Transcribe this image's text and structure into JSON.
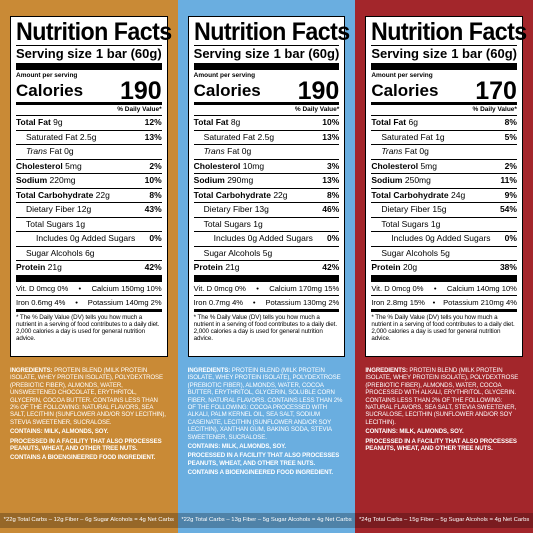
{
  "common": {
    "title": "Nutrition Facts",
    "serving_label": "Serving size",
    "serving_value": "1 bar (60g)",
    "amount_per_serving": "Amount per serving",
    "calories_label": "Calories",
    "dv_header": "% Daily Value*",
    "total_fat": "Total Fat",
    "saturated_fat": "Saturated Fat",
    "trans_fat_italic": "Trans",
    "trans_fat_rest": " Fat 0g",
    "cholesterol": "Cholesterol",
    "sodium": "Sodium",
    "total_carb": "Total Carbohydrate",
    "dietary_fiber": "Dietary Fiber",
    "total_sugars": "Total Sugars 1g",
    "added_sugars": "Includes 0g Added Sugars",
    "added_sugars_dv": "0%",
    "sugar_alcohols": "Sugar Alcohols",
    "protein": "Protein",
    "footnote": "* The % Daily Value (DV) tells you how much a nutrient in a serving of food contributes to a daily diet. 2,000 calories a day is used for general nutrition advice."
  },
  "panels": [
    {
      "color": "#c98a36",
      "calories": "190",
      "fat": "9g",
      "fat_dv": "12%",
      "sat_fat": "2.5g",
      "sat_fat_dv": "13%",
      "chol": "5mg",
      "chol_dv": "2%",
      "sodium": "220mg",
      "sodium_dv": "10%",
      "carb": "22g",
      "carb_dv": "8%",
      "fiber": "12g",
      "fiber_dv": "43%",
      "sugar_alc": "6g",
      "protein": "21g",
      "protein_dv": "42%",
      "vit_d": "Vit. D 0mcg 0%",
      "calcium": "Calcium 150mg 10%",
      "iron": "Iron 0.6mg 4%",
      "potassium": "Potassium 140mg 2%",
      "ingredients_label": "INGREDIENTS:",
      "ingredients": "PROTEIN BLEND (MILK PROTEIN ISOLATE, WHEY PROTEIN ISOLATE), POLYDEXTROSE (PREBIOTIC FIBER), ALMONDS, WATER, UNSWEETENED CHOCOLATE, ERYTHRITOL, GLYCERIN, COCOA BUTTER. CONTAINS LESS THAN 2% OF THE FOLLOWING: NATURAL FLAVORS, SEA SALT, LECITHIN (SUNFLOWER AND/OR SOY LECITHIN), STEVIA SWEETENER, SUCRALOSE.",
      "contains": "CONTAINS: MILK, ALMONDS, SOY.",
      "facility": "PROCESSED IN A FACILITY THAT ALSO PROCESSES PEANUTS, WHEAT, AND OTHER TREE NUTS.",
      "bioengineered": "CONTAINS A BIOENGINEERED FOOD INGREDIENT.",
      "carbs_note": "*22g Total Carbs – 12g Fiber – 6g Sugar Alcohols = 4g Net Carbs"
    },
    {
      "color": "#6aaee0",
      "calories": "190",
      "fat": "8g",
      "fat_dv": "10%",
      "sat_fat": "2.5g",
      "sat_fat_dv": "13%",
      "chol": "10mg",
      "chol_dv": "3%",
      "sodium": "290mg",
      "sodium_dv": "13%",
      "carb": "22g",
      "carb_dv": "8%",
      "fiber": "13g",
      "fiber_dv": "46%",
      "sugar_alc": "5g",
      "protein": "21g",
      "protein_dv": "42%",
      "vit_d": "Vit. D 0mcg 0%",
      "calcium": "Calcium 170mg 15%",
      "iron": "Iron 0.7mg 4%",
      "potassium": "Potassium 130mg 2%",
      "ingredients_label": "INGREDIENTS:",
      "ingredients": "PROTEIN BLEND (MILK PROTEIN ISOLATE, WHEY PROTEIN ISOLATE), POLYDEXTROSE (PREBIOTIC FIBER), ALMONDS, WATER, COCOA BUTTER, ERYTHRITOL, GLYCERIN, SOLUBLE CORN FIBER, NATURAL FLAVORS. CONTAINS LESS THAN 2% OF THE FOLLOWING: COCOA PROCESSED WITH ALKALI, PALM KERNEL OIL, SEA SALT, SODIUM CASEINATE, LECITHIN (SUNFLOWER AND/OR SOY LECITHIN), XANTHAN GUM, BAKING SODA, STEVIA SWEETENER, SUCRALOSE.",
      "contains": "CONTAINS: MILK, ALMONDS, SOY.",
      "facility": "PROCESSED IN A FACILITY THAT ALSO PROCESSES PEANUTS, WHEAT, AND OTHER TREE NUTS.",
      "bioengineered": "CONTAINS A BIOENGINEERED FOOD INGREDIENT.",
      "carbs_note": "*22g Total Carbs – 13g Fiber – 5g Sugar Alcohols = 4g Net Carbs"
    },
    {
      "color": "#a3262b",
      "calories": "170",
      "fat": "6g",
      "fat_dv": "8%",
      "sat_fat": "1g",
      "sat_fat_dv": "5%",
      "chol": "5mg",
      "chol_dv": "2%",
      "sodium": "250mg",
      "sodium_dv": "11%",
      "carb": "24g",
      "carb_dv": "9%",
      "fiber": "15g",
      "fiber_dv": "54%",
      "sugar_alc": "5g",
      "protein": "20g",
      "protein_dv": "38%",
      "vit_d": "Vit. D 0mcg 0%",
      "calcium": "Calcium 140mg 10%",
      "iron": "Iron 2.8mg 15%",
      "potassium": "Potassium 210mg 4%",
      "ingredients_label": "INGREDIENTS:",
      "ingredients": "PROTEIN BLEND (MILK PROTEIN ISOLATE, WHEY PROTEIN ISOLATE), POLYDEXTROSE (PREBIOTIC FIBER), ALMONDS, WATER, COCOA PROCESSED WITH ALKALI, ERYTHRITOL, GLYCERIN. CONTAINS LESS THAN 2% OF THE FOLLOWING: NATURAL FLAVORS, SEA SALT, STEVIA SWEETENER, SUCRALOSE, LECITHIN (SUNFLOWER AND/OR SOY LECITHIN).",
      "contains": "CONTAINS: MILK, ALMONDS, SOY.",
      "facility": "PROCESSED IN A FACILITY THAT ALSO PROCESSES PEANUTS, WHEAT, AND OTHER TREE NUTS.",
      "bioengineered": "",
      "carbs_note": "*24g Total Carbs – 15g Fiber – 5g Sugar Alcohols = 4g Net Carbs"
    }
  ]
}
